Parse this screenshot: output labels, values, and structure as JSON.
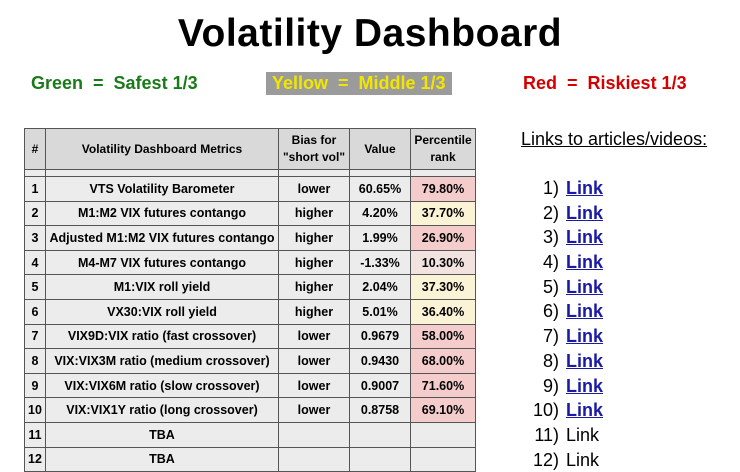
{
  "title": "Volatility Dashboard",
  "legend": {
    "green": "Green  =  Safest 1/3",
    "yellow": "Yellow  =  Middle 1/3",
    "red": "Red  =  Riskiest 1/3",
    "colors": {
      "green": "#1a7a1a",
      "yellow": "#f2e600",
      "red": "#d40000"
    }
  },
  "table": {
    "headers": [
      "#",
      "Volatility Dashboard Metrics",
      "Bias for \"short vol\"",
      "Value",
      "Percentile rank"
    ],
    "rows": [
      {
        "num": "1",
        "metric": "VTS Volatility Barometer",
        "bias": "lower",
        "value": "60.65%",
        "pct": "79.80%"
      },
      {
        "num": "2",
        "metric": "M1:M2 VIX futures contango",
        "bias": "higher",
        "value": "4.20%",
        "pct": "37.70%"
      },
      {
        "num": "3",
        "metric": "Adjusted M1:M2 VIX futures contango",
        "bias": "higher",
        "value": "1.99%",
        "pct": "26.90%"
      },
      {
        "num": "4",
        "metric": "M4-M7 VIX futures contango",
        "bias": "higher",
        "value": "-1.33%",
        "pct": "10.30%"
      },
      {
        "num": "5",
        "metric": "M1:VIX roll yield",
        "bias": "higher",
        "value": "2.04%",
        "pct": "37.30%"
      },
      {
        "num": "6",
        "metric": "VX30:VIX roll yield",
        "bias": "higher",
        "value": "5.01%",
        "pct": "36.40%"
      },
      {
        "num": "7",
        "metric": "VIX9D:VIX ratio  (fast crossover)",
        "bias": "lower",
        "value": "0.9679",
        "pct": "58.00%"
      },
      {
        "num": "8",
        "metric": "VIX:VIX3M ratio  (medium crossover)",
        "bias": "lower",
        "value": "0.9430",
        "pct": "68.00%"
      },
      {
        "num": "9",
        "metric": "VIX:VIX6M ratio  (slow crossover)",
        "bias": "lower",
        "value": "0.9007",
        "pct": "71.60%"
      },
      {
        "num": "10",
        "metric": "VIX:VIX1Y ratio  (long crossover)",
        "bias": "lower",
        "value": "0.8758",
        "pct": "69.10%"
      },
      {
        "num": "11",
        "metric": "TBA",
        "bias": "",
        "value": "",
        "pct": ""
      },
      {
        "num": "12",
        "metric": "TBA",
        "bias": "",
        "value": "",
        "pct": ""
      }
    ]
  },
  "links": {
    "title": "Links to articles/videos:",
    "items": [
      {
        "num": "1)",
        "label": "Link",
        "active": true
      },
      {
        "num": "2)",
        "label": "Link",
        "active": true
      },
      {
        "num": "3)",
        "label": "Link",
        "active": true
      },
      {
        "num": "4)",
        "label": "Link",
        "active": true
      },
      {
        "num": "5)",
        "label": "Link",
        "active": true
      },
      {
        "num": "6)",
        "label": "Link",
        "active": true
      },
      {
        "num": "7)",
        "label": "Link",
        "active": true
      },
      {
        "num": "8)",
        "label": "Link",
        "active": true
      },
      {
        "num": "9)",
        "label": "Link",
        "active": true
      },
      {
        "num": "10)",
        "label": "Link",
        "active": true
      },
      {
        "num": "11)",
        "label": "Link",
        "active": false
      },
      {
        "num": "12)",
        "label": "Link",
        "active": false
      }
    ]
  }
}
